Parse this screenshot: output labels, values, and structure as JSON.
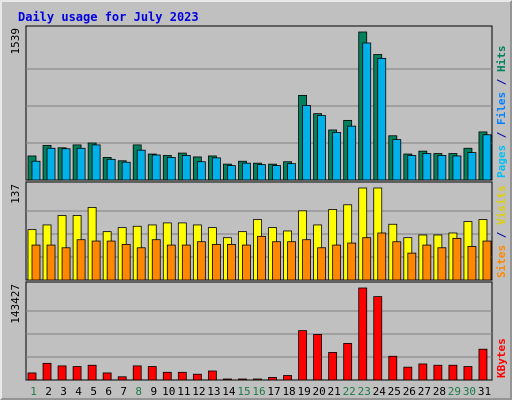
{
  "chart_data": {
    "type": "bar",
    "title": "Daily usage for July 2023",
    "categories": [
      "1",
      "2",
      "3",
      "4",
      "5",
      "6",
      "7",
      "8",
      "9",
      "10",
      "11",
      "12",
      "13",
      "14",
      "15",
      "16",
      "17",
      "18",
      "19",
      "20",
      "21",
      "22",
      "23",
      "24",
      "25",
      "26",
      "27",
      "28",
      "29",
      "30",
      "31"
    ],
    "weekend_days": [
      "1",
      "8",
      "15",
      "16",
      "22",
      "23",
      "29",
      "30"
    ],
    "weekend_color": "#1f7a48",
    "weekday_color": "#000000",
    "panels": [
      {
        "name": "hits-files-pages",
        "ymax": 1539,
        "ymax_label": "1539",
        "series": [
          {
            "name": "Hits",
            "color": "#00805c",
            "values": [
              250,
              360,
              335,
              365,
              385,
              235,
              200,
              365,
              270,
              255,
              280,
              240,
              250,
              165,
              195,
              175,
              165,
              190,
              880,
              690,
              520,
              620,
              1539,
              1305,
              460,
              270,
              300,
              275,
              275,
              330,
              500
            ]
          },
          {
            "name": "Files",
            "color": "#00b0e8",
            "values": [
              195,
              330,
              325,
              330,
              365,
              215,
              185,
              310,
              260,
              235,
              255,
              190,
              230,
              150,
              175,
              160,
              150,
              170,
              775,
              670,
              495,
              560,
              1425,
              1265,
              420,
              255,
              275,
              255,
              250,
              285,
              470
            ]
          },
          {
            "name": "Pages",
            "color": "#00bff5",
            "values": [
              0,
              0,
              0,
              0,
              0,
              0,
              0,
              0,
              0,
              0,
              0,
              0,
              0,
              0,
              0,
              0,
              0,
              0,
              0,
              0,
              0,
              0,
              0,
              0,
              0,
              0,
              0,
              0,
              0,
              0,
              0
            ]
          }
        ],
        "right_label": [
          {
            "text": "Pages",
            "color": "#00bff5"
          },
          {
            "text": " / ",
            "color": "#0000a0"
          },
          {
            "text": "Files",
            "color": "#0080ff"
          },
          {
            "text": " / ",
            "color": "#0000a0"
          },
          {
            "text": "Hits",
            "color": "#00805c"
          }
        ]
      },
      {
        "name": "visits-sites",
        "ymax": 137,
        "ymax_label": "137",
        "series": [
          {
            "name": "Visits",
            "color": "#ffff00",
            "values": [
              75,
              82,
              96,
              96,
              108,
              72,
              78,
              80,
              82,
              85,
              85,
              82,
              78,
              63,
              72,
              90,
              78,
              73,
              103,
              82,
              105,
              112,
              137,
              137,
              83,
              63,
              67,
              67,
              70,
              87,
              90
            ]
          },
          {
            "name": "Sites",
            "color": "#ff8800",
            "values": [
              52,
              52,
              48,
              60,
              58,
              58,
              53,
              48,
              60,
              52,
              52,
              57,
              53,
              53,
              52,
              65,
              57,
              57,
              60,
              48,
              52,
              55,
              63,
              70,
              57,
              40,
              52,
              48,
              62,
              50,
              58
            ]
          }
        ],
        "right_label": [
          {
            "text": "Sites",
            "color": "#ff8800"
          },
          {
            "text": " / ",
            "color": "#0000a0"
          },
          {
            "text": "Visits",
            "color": "#e0d000"
          }
        ]
      },
      {
        "name": "kbytes",
        "ymax": 143427,
        "ymax_label": "143427",
        "series": [
          {
            "name": "KBytes",
            "color": "#ff0000",
            "values": [
              11000,
              26000,
              22000,
              21000,
              23000,
              11000,
              5000,
              22000,
              21000,
              12000,
              12000,
              9000,
              14000,
              1200,
              1200,
              1200,
              4000,
              7000,
              77000,
              71000,
              43000,
              57000,
              143427,
              130000,
              37000,
              20000,
              25000,
              23000,
              23000,
              21000,
              48000
            ]
          }
        ],
        "right_label": [
          {
            "text": "KBytes",
            "color": "#ff0000"
          }
        ]
      }
    ]
  },
  "colors": {
    "title": "#0000e0",
    "frame": "#c0c0c0",
    "plot_bg": "#c0c0c0",
    "gridline": "#808080",
    "bar_outline": "#000000"
  }
}
